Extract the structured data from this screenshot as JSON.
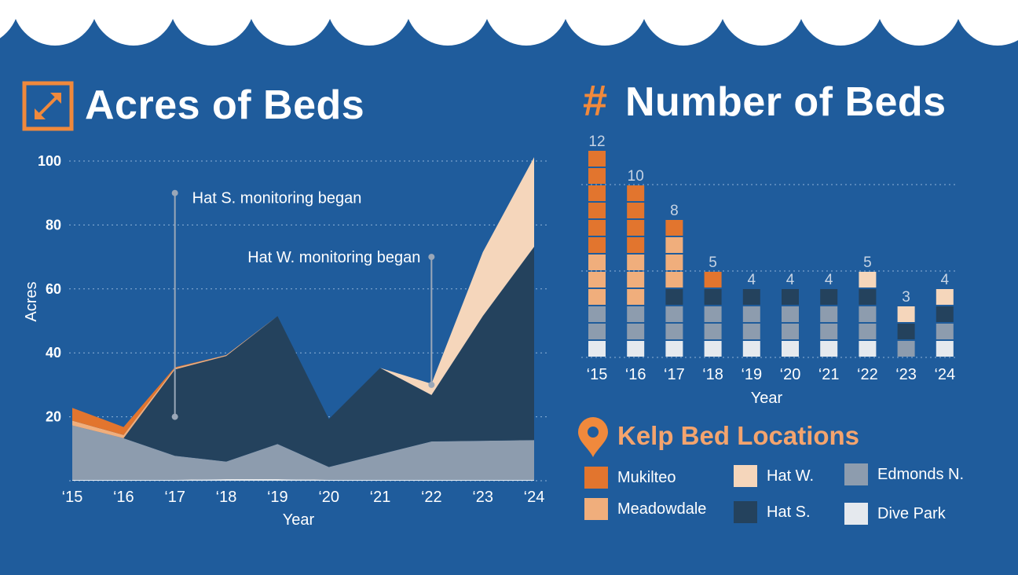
{
  "colors": {
    "background": "#1f5c9c",
    "Mukilteo": "#e2752e",
    "Meadowdale": "#f0ae7c",
    "Hat W.": "#f5d6bb",
    "Hat S.": "#24425d",
    "Edmonds N.": "#8d9cae",
    "Dive Park": "#e5e9ee",
    "accent": "#f0893c"
  },
  "icons": {
    "acres": "expand-arrows-icon",
    "number": "hash-icon",
    "locations": "map-pin-icon"
  },
  "acres_title": "Acres of Beds",
  "number_title": "Number of Beds",
  "hash_symbol": "#",
  "locations_title": "Kelp Bed Locations",
  "legend": [
    {
      "name": "Mukilteo",
      "color": "#e2752e"
    },
    {
      "name": "Meadowdale",
      "color": "#f0ae7c"
    },
    {
      "name": "Hat W.",
      "color": "#f5d6bb"
    },
    {
      "name": "Hat S.",
      "color": "#24425d"
    },
    {
      "name": "Edmonds N.",
      "color": "#8d9cae"
    },
    {
      "name": "Dive Park",
      "color": "#e5e9ee"
    }
  ],
  "chart_data": [
    {
      "type": "area",
      "stacked": true,
      "categories": [
        "‘15",
        "‘16",
        "‘17",
        "‘18",
        "‘19",
        "‘20",
        "‘21",
        "‘22",
        "‘23",
        "‘24"
      ],
      "xlabel": "Year",
      "ylabel": "Acres",
      "ylim": [
        0,
        100
      ],
      "yticks": [
        20,
        40,
        60,
        80,
        100
      ],
      "grid": "horizontal dotted",
      "series": [
        {
          "name": "Dive Park",
          "values": [
            0.3,
            0.3,
            0.3,
            0.5,
            0.5,
            0.3,
            0.3,
            0.3,
            0.3,
            0.3
          ]
        },
        {
          "name": "Edmonds N.",
          "values": [
            17,
            13,
            7.5,
            5.5,
            11,
            4,
            8,
            12,
            12.2,
            12.4
          ]
        },
        {
          "name": "Hat S.",
          "values": [
            0,
            0,
            27,
            33,
            40,
            15,
            27,
            14.5,
            39,
            60.5
          ]
        },
        {
          "name": "Hat W.",
          "values": [
            0,
            0,
            0,
            0,
            0,
            0,
            0,
            3.5,
            20,
            28
          ]
        },
        {
          "name": "Meadowdale",
          "values": [
            1.5,
            1,
            0.5,
            0.3,
            0,
            0,
            0,
            0,
            0,
            0
          ]
        },
        {
          "name": "Mukilteo",
          "values": [
            4,
            2.5,
            0.2,
            0,
            0,
            0,
            0,
            0,
            0,
            0
          ]
        }
      ],
      "annotations": [
        {
          "text": "Hat S. monitoring began",
          "category": "‘17",
          "y_from": 20,
          "y_to": 90
        },
        {
          "text": "Hat W. monitoring began",
          "category": "‘22",
          "y_from": 30,
          "y_to": 70
        }
      ]
    },
    {
      "type": "bar",
      "stacked": true,
      "unit": "beds",
      "categories": [
        "‘15",
        "‘16",
        "‘17",
        "‘18",
        "‘19",
        "‘20",
        "‘21",
        "‘22",
        "‘23",
        "‘24"
      ],
      "xlabel": "Year",
      "totals": [
        12,
        10,
        8,
        5,
        4,
        4,
        4,
        5,
        3,
        4
      ],
      "grid": "horizontal dotted",
      "series": [
        {
          "name": "Dive Park",
          "values": [
            1,
            1,
            1,
            1,
            1,
            1,
            1,
            1,
            0,
            1
          ]
        },
        {
          "name": "Edmonds N.",
          "values": [
            2,
            2,
            2,
            2,
            2,
            2,
            2,
            2,
            1,
            1
          ]
        },
        {
          "name": "Hat S.",
          "values": [
            0,
            0,
            1,
            1,
            1,
            1,
            1,
            1,
            1,
            1
          ]
        },
        {
          "name": "Hat W.",
          "values": [
            0,
            0,
            0,
            0,
            0,
            0,
            0,
            1,
            1,
            1
          ]
        },
        {
          "name": "Meadowdale",
          "values": [
            3,
            3,
            3,
            0,
            0,
            0,
            0,
            0,
            0,
            0
          ]
        },
        {
          "name": "Mukilteo",
          "values": [
            6,
            4,
            1,
            1,
            0,
            0,
            0,
            0,
            0,
            0
          ]
        }
      ]
    }
  ]
}
